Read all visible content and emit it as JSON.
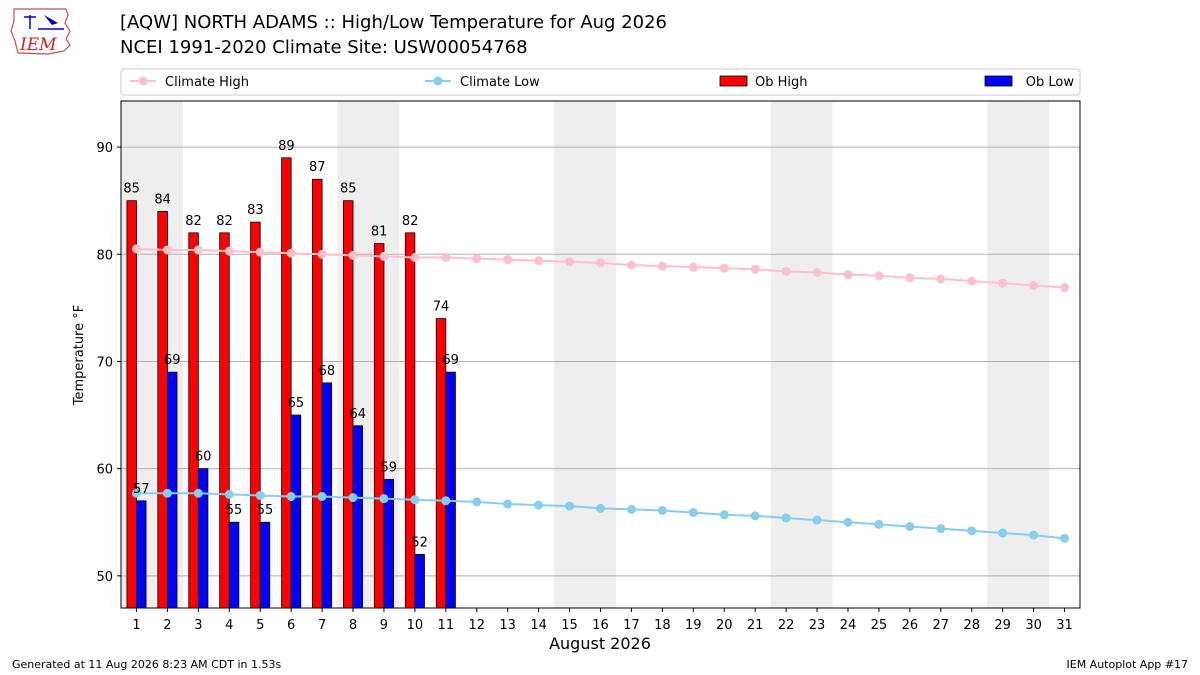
{
  "header": {
    "title_line1": "[AQW] NORTH ADAMS :: High/Low Temperature for Aug 2026",
    "title_line2": "NCEI 1991-2020 Climate Site: USW00054768",
    "logo_text": "IEM"
  },
  "footer": {
    "generated": "Generated at 11 Aug 2026 8:23 AM CDT in 1.53s",
    "app": "IEM Autoplot App #17"
  },
  "colors": {
    "climate_high": "#ffc0cb",
    "climate_low": "#87ceeb",
    "ob_high": "#ff0000",
    "ob_low": "#0000ff",
    "weekend_band": "#eeeeee",
    "grid": "#b0b0b0"
  },
  "chart_data": {
    "type": "bar",
    "xlabel": "August 2026",
    "ylabel": "Temperature °F",
    "ylim": [
      47,
      94.3
    ],
    "xlim": [
      0.5,
      31.5
    ],
    "yticks": [
      50,
      60,
      70,
      80,
      90
    ],
    "grid": "horizontal",
    "legend_position": "top",
    "legend": [
      {
        "label": "Climate High",
        "kind": "line"
      },
      {
        "label": "Climate Low",
        "kind": "line"
      },
      {
        "label": "Ob High",
        "kind": "bar"
      },
      {
        "label": "Ob Low",
        "kind": "bar"
      }
    ],
    "days": [
      1,
      2,
      3,
      4,
      5,
      6,
      7,
      8,
      9,
      10,
      11,
      12,
      13,
      14,
      15,
      16,
      17,
      18,
      19,
      20,
      21,
      22,
      23,
      24,
      25,
      26,
      27,
      28,
      29,
      30,
      31
    ],
    "weekend_days": [
      1,
      2,
      8,
      9,
      15,
      16,
      22,
      23,
      29,
      30
    ],
    "series": [
      {
        "name": "Climate High",
        "type": "line",
        "values": [
          80.5,
          80.4,
          80.4,
          80.3,
          80.2,
          80.1,
          80.0,
          79.9,
          79.8,
          79.7,
          79.7,
          79.6,
          79.5,
          79.4,
          79.3,
          79.2,
          79.0,
          78.9,
          78.8,
          78.7,
          78.6,
          78.4,
          78.3,
          78.1,
          78.0,
          77.8,
          77.7,
          77.5,
          77.3,
          77.1,
          76.9
        ]
      },
      {
        "name": "Climate Low",
        "type": "line",
        "values": [
          57.7,
          57.7,
          57.7,
          57.6,
          57.5,
          57.4,
          57.4,
          57.3,
          57.2,
          57.1,
          57.0,
          56.9,
          56.7,
          56.6,
          56.5,
          56.3,
          56.2,
          56.1,
          55.9,
          55.7,
          55.6,
          55.4,
          55.2,
          55.0,
          54.8,
          54.6,
          54.4,
          54.2,
          54.0,
          53.8,
          53.5
        ]
      },
      {
        "name": "Ob High",
        "type": "bar",
        "values": [
          85,
          84,
          82,
          82,
          83,
          89,
          87,
          85,
          81,
          82,
          74
        ]
      },
      {
        "name": "Ob Low",
        "type": "bar",
        "values": [
          57,
          69,
          60,
          55,
          55,
          65,
          68,
          64,
          59,
          52,
          69
        ]
      }
    ]
  }
}
